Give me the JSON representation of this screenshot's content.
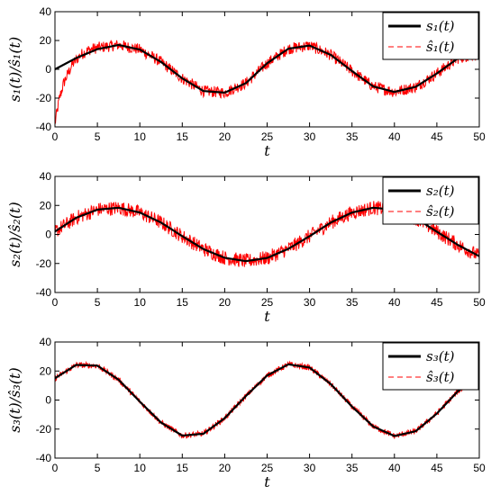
{
  "chart_data": [
    {
      "type": "line",
      "xlabel": "t",
      "ylabel": "s₁(t)/ŝ₁(t)",
      "xlim": [
        0,
        50
      ],
      "ylim": [
        -40,
        40
      ],
      "xticks": [
        "0",
        "5",
        "10",
        "15",
        "20",
        "25",
        "30",
        "35",
        "40",
        "45",
        "50"
      ],
      "yticks": [
        "40",
        "20",
        "0",
        "-20",
        "-40"
      ],
      "legend_position": "top-right",
      "series": [
        {
          "name": "s₁(t)",
          "color": "#000000",
          "style": "solid",
          "x": [
            0,
            2.5,
            5,
            7.5,
            10,
            12.5,
            15,
            17.5,
            20,
            22.5,
            25,
            27.5,
            30,
            32.5,
            35,
            37.5,
            40,
            42.5,
            45,
            47.5,
            50
          ],
          "y": [
            0,
            7.8,
            14,
            16.9,
            13.7,
            5.1,
            -6.3,
            -15.1,
            -16.2,
            -9.6,
            4.2,
            14.3,
            16.5,
            10,
            -1.2,
            -11.9,
            -15.7,
            -12.2,
            -2.9,
            7.7,
            14.6
          ]
        },
        {
          "name": "ŝ₁(t)",
          "color": "#ff0000",
          "style": "dashed",
          "x": [
            0,
            0.5,
            1,
            2,
            3,
            4,
            5,
            7.5,
            10,
            12.5,
            15,
            17.5,
            20,
            22.5,
            25,
            27.5,
            30,
            32.5,
            35,
            37.5,
            40,
            42.5,
            45,
            47.5,
            50
          ],
          "y": [
            -38,
            -21,
            -10,
            3,
            10,
            13.5,
            15,
            16.9,
            13.7,
            5.1,
            -6.3,
            -15.1,
            -16.2,
            -9.6,
            4.2,
            14.3,
            16.5,
            10,
            -1.2,
            -11.9,
            -15.7,
            -12.2,
            -2.9,
            7.7,
            11
          ],
          "noise_amplitude": 4
        }
      ]
    },
    {
      "type": "line",
      "xlabel": "t",
      "ylabel": "s₂(t)/ŝ₂(t)",
      "xlim": [
        0,
        50
      ],
      "ylim": [
        -40,
        40
      ],
      "xticks": [
        "0",
        "5",
        "10",
        "15",
        "20",
        "25",
        "30",
        "35",
        "40",
        "45",
        "50"
      ],
      "yticks": [
        "40",
        "20",
        "0",
        "-20",
        "-40"
      ],
      "legend_position": "top-right",
      "series": [
        {
          "name": "s₂(t)",
          "color": "#000000",
          "style": "solid",
          "x": [
            0,
            2.5,
            5,
            7.5,
            10,
            12.5,
            15,
            17.5,
            20,
            22.5,
            25,
            27.5,
            30,
            32.5,
            35,
            37.5,
            40,
            42.5,
            45,
            47.5,
            50
          ],
          "y": [
            2,
            11.5,
            17.1,
            18.4,
            15.1,
            8.2,
            -1.2,
            -10.1,
            -16.1,
            -18.4,
            -16.2,
            -9.9,
            -1.2,
            8.2,
            15.1,
            18.4,
            17.1,
            11.3,
            1.9,
            -7.3,
            -15
          ]
        },
        {
          "name": "ŝ₂(t)",
          "color": "#ff0000",
          "style": "dashed",
          "x": [
            0,
            2.5,
            5,
            7.5,
            10,
            12.5,
            15,
            17.5,
            20,
            22.5,
            25,
            27.5,
            30,
            32.5,
            35,
            37.5,
            40,
            42.5,
            45,
            47.5,
            50
          ],
          "y": [
            2,
            11.5,
            17.1,
            18.4,
            15.1,
            8.2,
            -1.2,
            -10.1,
            -16.1,
            -18.4,
            -16.2,
            -9.9,
            -1.2,
            8.2,
            15.1,
            18.4,
            17.1,
            11.3,
            1.9,
            -7.3,
            -15
          ],
          "noise_amplitude": 5
        }
      ]
    },
    {
      "type": "line",
      "xlabel": "t",
      "ylabel": "s₃(t)/ŝ₃(t)",
      "xlim": [
        0,
        50
      ],
      "ylim": [
        -40,
        40
      ],
      "xticks": [
        "0",
        "5",
        "10",
        "15",
        "20",
        "25",
        "30",
        "35",
        "40",
        "45",
        "50"
      ],
      "yticks": [
        "40",
        "20",
        "0",
        "-20",
        "-40"
      ],
      "legend_position": "top-right",
      "series": [
        {
          "name": "s₃(t)",
          "color": "#000000",
          "style": "solid",
          "x": [
            0,
            2.5,
            5,
            7.5,
            10,
            12.5,
            15,
            17.5,
            20,
            22.5,
            25,
            27.5,
            30,
            32.5,
            35,
            37.5,
            40,
            42.5,
            45,
            47.5,
            50
          ],
          "y": [
            15,
            24.2,
            23.7,
            14,
            -1.1,
            -15.5,
            -24.5,
            -23.2,
            -12.5,
            2.8,
            16.9,
            24.6,
            22.4,
            11,
            -4.5,
            -18.2,
            -24.8,
            -21.5,
            -9.3,
            6.2,
            15
          ]
        },
        {
          "name": "ŝ₃(t)",
          "color": "#ff0000",
          "style": "dashed",
          "x": [
            0,
            2.5,
            5,
            7.5,
            10,
            12.5,
            15,
            17.5,
            20,
            22.5,
            25,
            27.5,
            30,
            32.5,
            35,
            37.5,
            40,
            42.5,
            45,
            47.5,
            50
          ],
          "y": [
            15,
            24.2,
            23.7,
            14,
            -1.1,
            -15.5,
            -24.5,
            -23.2,
            -12.5,
            2.8,
            16.9,
            24.6,
            22.4,
            11,
            -4.5,
            -18.2,
            -24.8,
            -21.5,
            -9.3,
            6.2,
            15
          ],
          "noise_amplitude": 2
        }
      ]
    }
  ]
}
